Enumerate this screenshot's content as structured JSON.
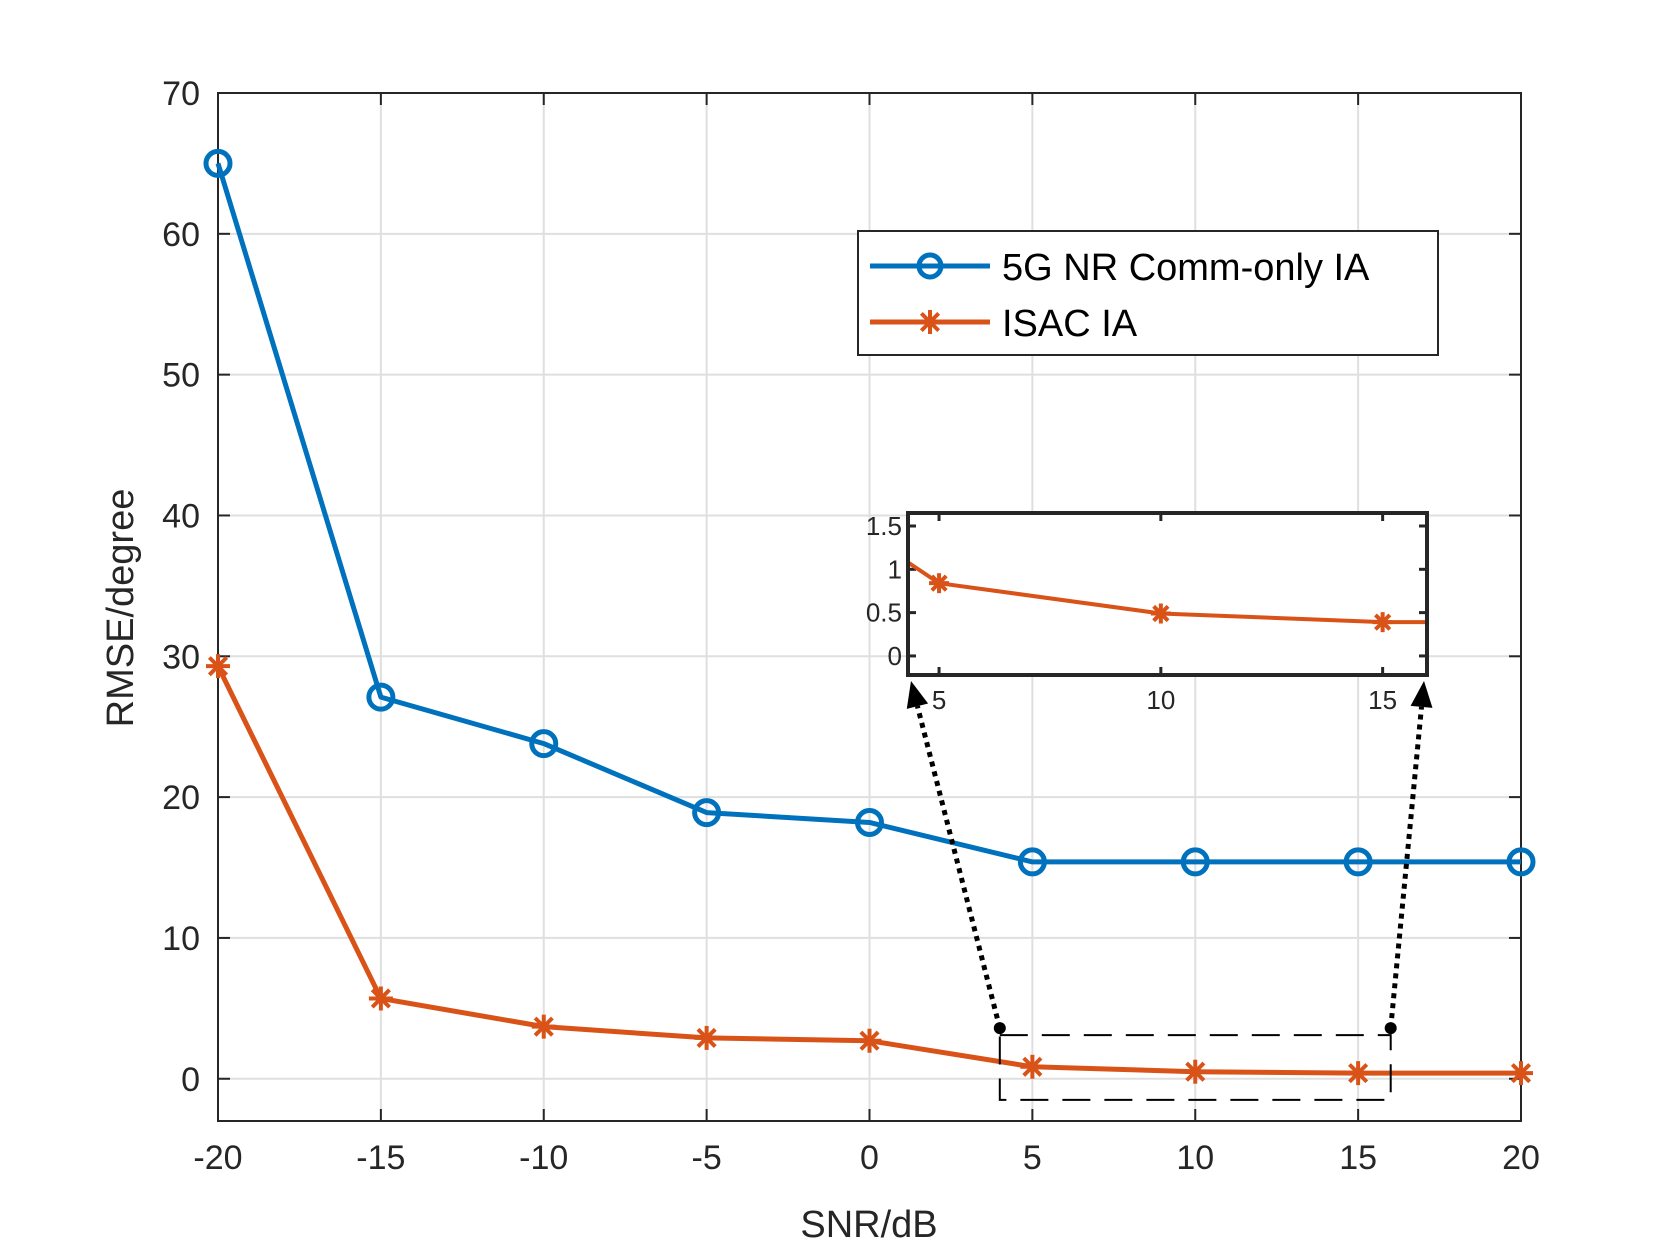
{
  "chart_data": {
    "type": "line",
    "title": "",
    "xlabel": "SNR/dB",
    "ylabel": "RMSE/degree",
    "x": [
      -20,
      -15,
      -10,
      -5,
      0,
      5,
      10,
      15,
      20
    ],
    "xlim": [
      -20,
      20
    ],
    "ylim": [
      -3,
      70
    ],
    "xticks": [
      -20,
      -15,
      -10,
      -5,
      0,
      5,
      10,
      15,
      20
    ],
    "xtick_labels": [
      "-20",
      "-15",
      "-10",
      "-5",
      "0",
      "5",
      "10",
      "15",
      "20"
    ],
    "yticks": [
      0,
      10,
      20,
      30,
      40,
      50,
      60,
      70
    ],
    "ytick_labels": [
      "0",
      "10",
      "20",
      "30",
      "40",
      "50",
      "60",
      "70"
    ],
    "grid": true,
    "legend_position": "top-right",
    "series": [
      {
        "name": "5G NR Comm-only IA",
        "color": "#0072BD",
        "marker": "circle",
        "values": [
          65,
          27.1,
          23.8,
          18.9,
          18.2,
          15.4,
          15.4,
          15.4,
          15.4
        ]
      },
      {
        "name": "ISAC IA",
        "color": "#D95319",
        "marker": "asterisk",
        "values": [
          29.3,
          5.7,
          3.7,
          2.9,
          2.7,
          0.85,
          0.5,
          0.4,
          0.4
        ]
      }
    ],
    "inset": {
      "series": "ISAC IA",
      "xlim": [
        4.3,
        16
      ],
      "ylim": [
        -0.22,
        1.65
      ],
      "x": [
        4.3,
        5,
        10,
        15,
        16
      ],
      "values": [
        1.08,
        0.84,
        0.49,
        0.39,
        0.39
      ],
      "marker_x": [
        5,
        10,
        15
      ],
      "marker_values": [
        0.84,
        0.49,
        0.39
      ],
      "xticks": [
        5,
        10,
        15
      ],
      "xtick_labels": [
        "5",
        "10",
        "15"
      ],
      "yticks": [
        0,
        0.5,
        1,
        1.5
      ],
      "ytick_labels": [
        "0",
        "0.5",
        "1",
        "1.5"
      ],
      "zoom_region_x": [
        4,
        16
      ],
      "zoom_region_y": [
        -1.5,
        3.1
      ]
    }
  }
}
